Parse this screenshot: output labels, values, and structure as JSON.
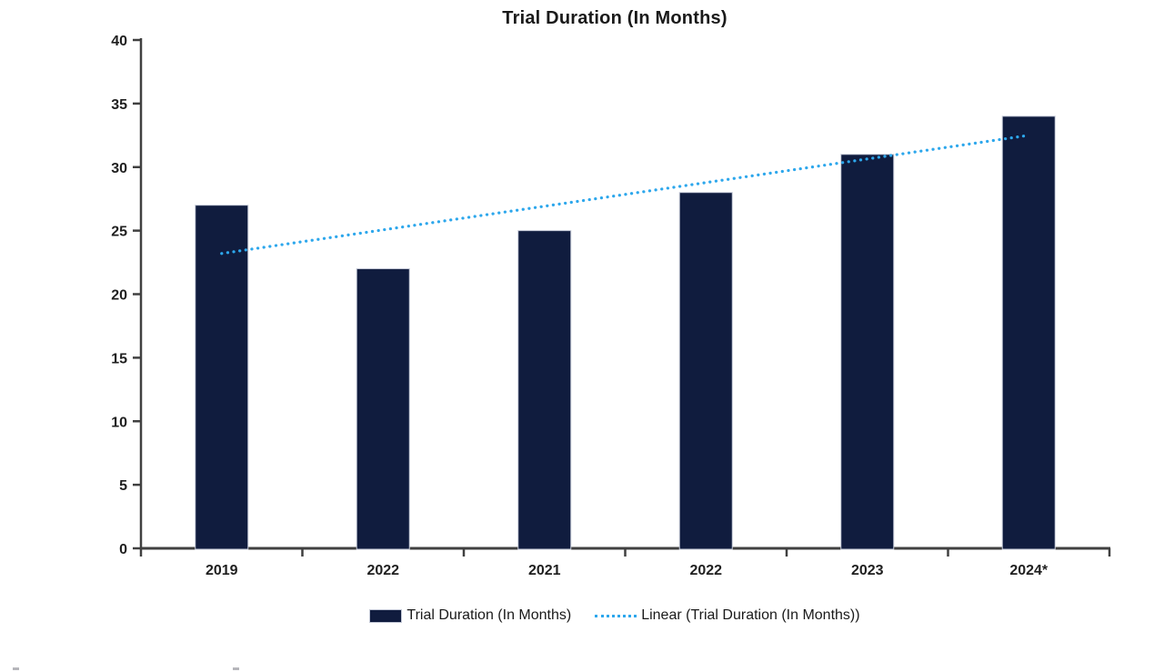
{
  "chart_data": {
    "type": "bar",
    "title": "Trial Duration (In Months)",
    "categories": [
      "2019",
      "2022",
      "2021",
      "2022",
      "2023",
      "2024*"
    ],
    "series": [
      {
        "name": "Trial Duration (In Months)",
        "values": [
          27,
          22,
          25,
          28,
          31,
          34
        ],
        "color": "#101c3e"
      }
    ],
    "trendline": {
      "label": "Linear (Trial Duration (In Months))",
      "start_value": 23.2,
      "end_value": 32.5,
      "color": "#2da7ec",
      "style": "dotted"
    },
    "xlabel": "",
    "ylabel": "",
    "ylim": [
      0,
      40
    ],
    "ytick_step": 5,
    "yticks": [
      0,
      5,
      10,
      15,
      20,
      25,
      30,
      35,
      40
    ],
    "grid": false,
    "legend_position": "bottom",
    "legend": [
      {
        "label": "Trial Duration (In Months)",
        "swatch": "filled-box",
        "color": "#101c3e"
      },
      {
        "label": "Linear (Trial Duration (In Months))",
        "swatch": "dotted-line",
        "color": "#2da7ec"
      }
    ],
    "axis_color": "#404040",
    "bar_border_color": "#c3c8d6"
  }
}
